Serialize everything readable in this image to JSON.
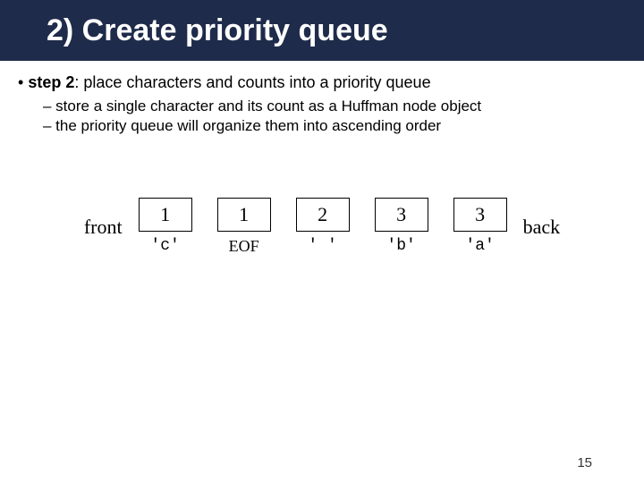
{
  "title": "2) Create priority queue",
  "bullet": {
    "lead": "• ",
    "bold": "step 2",
    "rest": ": place characters and counts into a priority queue"
  },
  "sub1": "– store a single character and its count as a Huffman node object",
  "sub2": "– the priority queue will organize them into ascending order",
  "queue": {
    "front_label": "front",
    "back_label": "back",
    "nodes": [
      {
        "count": "1",
        "char": "'c'"
      },
      {
        "count": "1",
        "char": "EOF"
      },
      {
        "count": "2",
        "char": "' '"
      },
      {
        "count": "3",
        "char": "'b'"
      },
      {
        "count": "3",
        "char": "'a'"
      }
    ]
  },
  "page_number": "15",
  "colors": {
    "title_bg": "#1f2b4a",
    "title_fg": "#ffffff",
    "text": "#000000",
    "page_bg": "#ffffff"
  }
}
